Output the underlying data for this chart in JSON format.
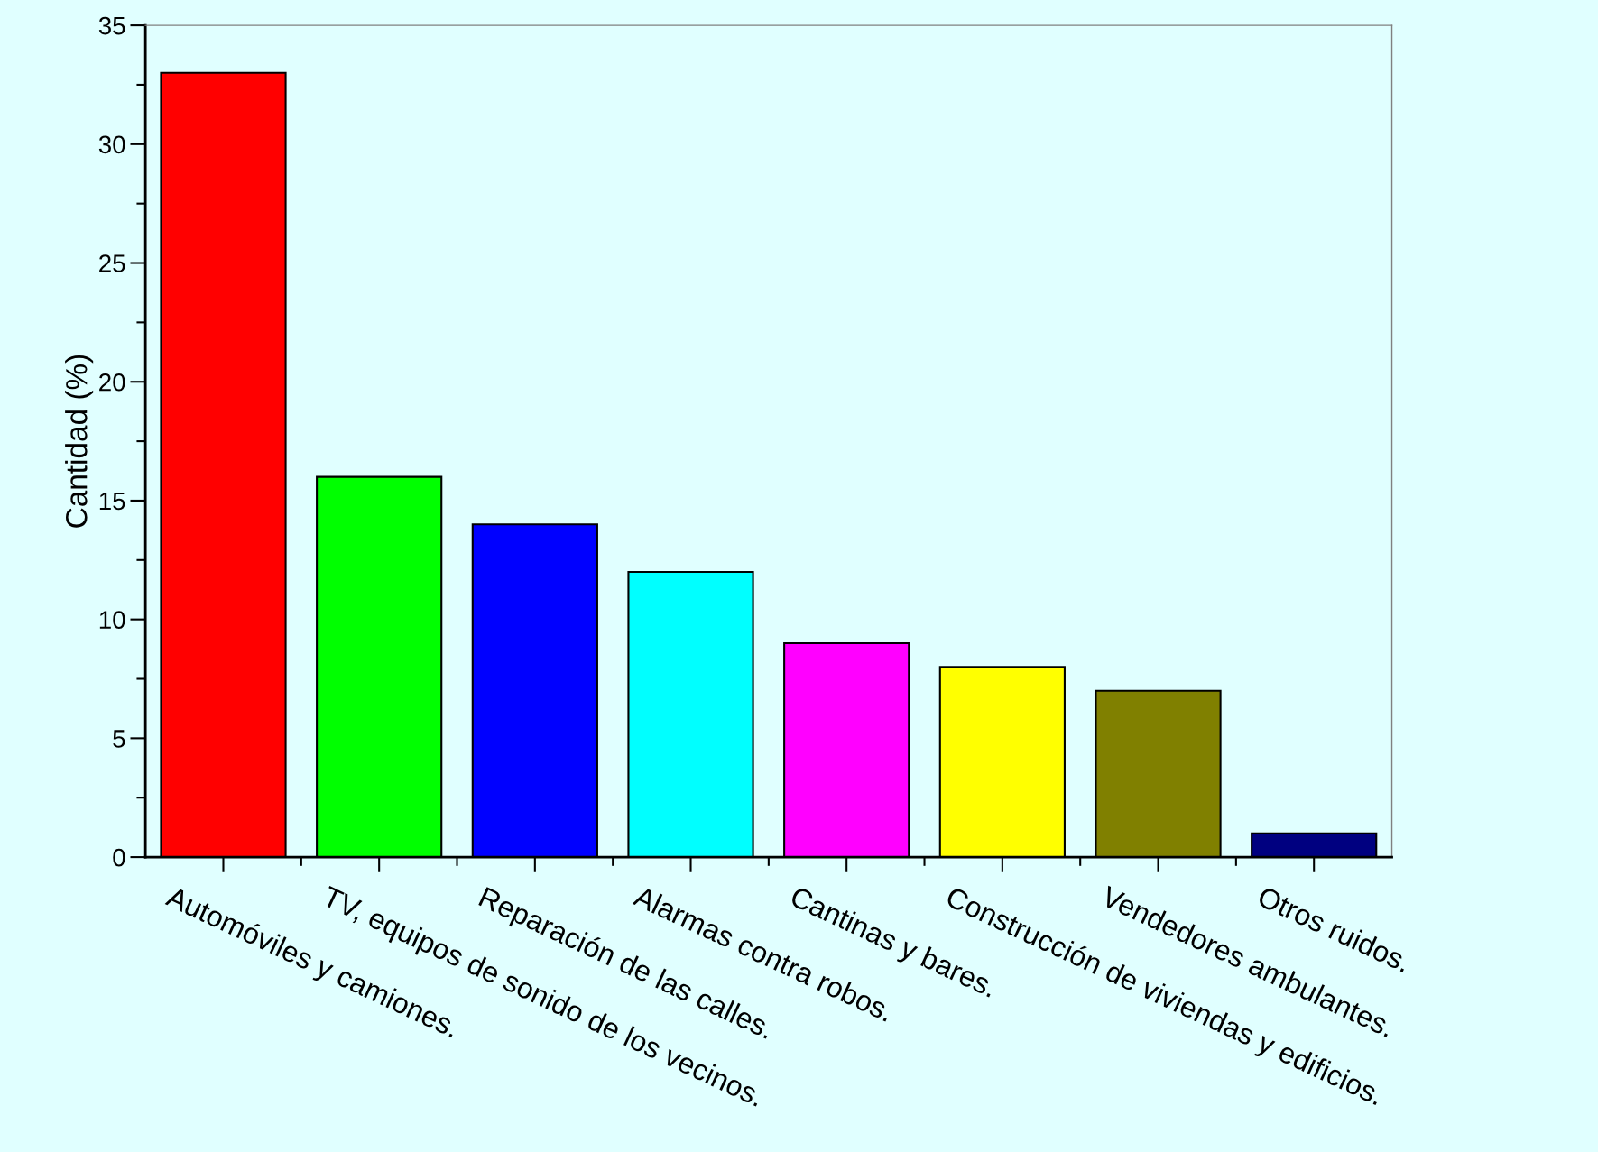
{
  "chart_data": {
    "type": "bar",
    "ylabel": "Cantidad (%)",
    "categories": [
      "Automóviles y camiones.",
      "TV, equipos de sonido de los vecinos.",
      "Reparación de las calles.",
      "Alarmas contra robos.",
      "Cantinas y bares.",
      "Construcción de viviendas y edificios.",
      "Vendedores ambulantes.",
      "Otros ruidos."
    ],
    "values": [
      33,
      16,
      14,
      12,
      9,
      8,
      7,
      1
    ],
    "colors": [
      "#ff0000",
      "#00ff00",
      "#0000ff",
      "#00ffff",
      "#ff00ff",
      "#ffff00",
      "#808000",
      "#000080"
    ],
    "ylim": [
      0,
      35
    ],
    "yticks": [
      0,
      5,
      10,
      15,
      20,
      25,
      30,
      35
    ],
    "grid": false,
    "legend": false
  }
}
